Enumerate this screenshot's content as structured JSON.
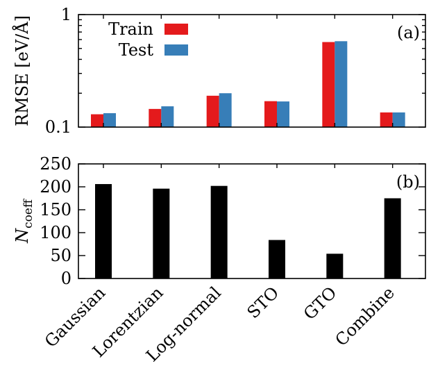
{
  "chart_data": [
    {
      "type": "bar",
      "panel_label": "(a)",
      "ylabel": "RMSE [eV/Å]",
      "yscale": "log",
      "ylim": [
        0.1,
        1
      ],
      "yticks": [
        {
          "value": 0.1,
          "label": "0.1"
        },
        {
          "value": 1,
          "label": "1"
        }
      ],
      "minor_yticks": [
        0.2,
        0.3,
        0.4,
        0.5,
        0.6,
        0.7,
        0.8,
        0.9
      ],
      "categories": [
        "Gaussian",
        "Lorentzian",
        "Log-normal",
        "STO",
        "GTO",
        "Combine"
      ],
      "legend_position": "top-left",
      "series": [
        {
          "name": "Train",
          "color": "#e41a1c",
          "values": [
            0.13,
            0.145,
            0.19,
            0.17,
            0.57,
            0.135
          ]
        },
        {
          "name": "Test",
          "color": "#377eb8",
          "values": [
            0.133,
            0.153,
            0.2,
            0.169,
            0.58,
            0.135
          ]
        }
      ]
    },
    {
      "type": "bar",
      "panel_label": "(b)",
      "ylabel": "N",
      "ylabel_subscript": "coeff",
      "yscale": "linear",
      "ylim": [
        0,
        250
      ],
      "yticks": [
        {
          "value": 0,
          "label": "0"
        },
        {
          "value": 50,
          "label": "50"
        },
        {
          "value": 100,
          "label": "100"
        },
        {
          "value": 150,
          "label": "150"
        },
        {
          "value": 200,
          "label": "200"
        },
        {
          "value": 250,
          "label": "250"
        }
      ],
      "categories": [
        "Gaussian",
        "Lorentzian",
        "Log-normal",
        "STO",
        "GTO",
        "Combine"
      ],
      "series": [
        {
          "color": "#000000",
          "values": [
            206,
            196,
            202,
            84,
            54,
            175
          ]
        }
      ]
    }
  ]
}
